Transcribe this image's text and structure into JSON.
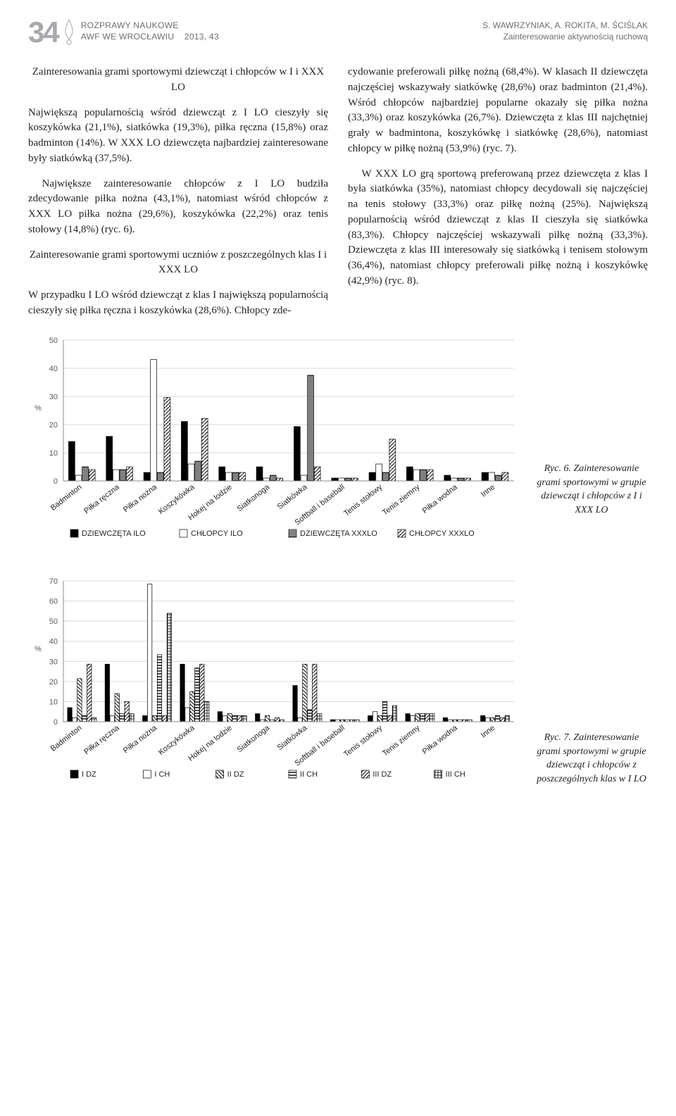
{
  "page_number": "34",
  "header_left_line1": "ROZPRAWY NAUKOWE",
  "header_left_line2_a": "AWF WE WROCŁAWIU",
  "header_left_line2_b": "2013, 43",
  "header_right_line1": "S. WAWRZYNIAK, A. ROKITA, M. ŚCIŚLAK",
  "header_right_line2": "Zainteresowanie aktywnością ruchową",
  "subhead1": "Zainteresowania grami sportowymi dziewcząt i chłopców w I i XXX LO",
  "para1": "Największą popularnością wśród dziewcząt z I LO cieszyły się koszykówka (21,1%), siatkówka (19,3%), piłka ręczna (15,8%) oraz badminton (14%). W XXX LO dziewczęta najbardziej zainteresowane były siatkówką (37,5%).",
  "para2": "Największe zainteresowanie chłopców z I LO budziła zdecydowanie piłka nożna (43,1%), natomiast wśród chłopców z XXX LO piłka nożna (29,6%), koszykówka (22,2%) oraz tenis stołowy (14,8%) (ryc. 6).",
  "subhead2": "Zainteresowanie grami sportowymi uczniów z poszczególnych klas I i XXX LO",
  "para3": "W przypadku I LO wśród dziewcząt z klas I największą popularnością cieszyły się piłka ręczna i koszykówka (28,6%). Chłopcy zde-",
  "para4": "cydowanie preferowali piłkę nożną (68,4%). W klasach II dziewczęta najczęściej wskazywały siatkówkę (28,6%) oraz badminton (21,4%). Wśród chłopców najbardziej popularne okazały się piłka nożna (33,3%) oraz koszykówka (26,7%). Dziewczęta z klas III najchętniej grały w badmintona, koszykówkę i siatkówkę (28,6%), natomiast chłopcy w piłkę nożną (53,9%) (ryc. 7).",
  "para5": "W XXX LO grą sportową preferowaną przez dziewczęta z klas I była siatkówka (35%), natomiast chłopcy decydowali się najczęściej na tenis stołowy (33,3%) oraz piłkę nożną (25%). Największą popularnością wśród dziewcząt z klas II cieszyła się siatkówka (83,3%). Chłopcy najczęściej wskazywali piłkę nożną (33,3%). Dziewczęta z klas III interesowały się siatkówką i tenisem stołowym (36,4%), natomiast chłopcy preferowali piłkę nożną i koszykówkę (42,9%) (ryc. 8).",
  "caption6": "Ryc. 6. Zainteresowanie grami sportowymi w grupie dziewcząt i chłopców z I i XXX LO",
  "caption7": "Ryc. 7. Zainteresowanie grami sportowymi w grupie dziewcząt i chłopców z poszczególnych klas w I LO",
  "chart6": {
    "type": "bar",
    "categories": [
      "Badminton",
      "Piłka ręczna",
      "Piłka nożna",
      "Koszykówka",
      "Hokej na lodzie",
      "Siatkonoga",
      "Siatkówka",
      "Softball i baseball",
      "Tenis stołowy",
      "Tenis ziemny",
      "Piłka wodna",
      "Inne"
    ],
    "series": [
      {
        "name": "DZIEWCZĘTA ILO",
        "fill": "#000000",
        "pattern": "solid",
        "values": [
          14,
          15.8,
          3,
          21.1,
          5,
          5,
          19.3,
          1,
          3,
          5,
          2,
          3
        ]
      },
      {
        "name": "CHŁOPCY ILO",
        "fill": "#ffffff",
        "pattern": "outline",
        "values": [
          2,
          4,
          43.1,
          6,
          3,
          1,
          2,
          1,
          6,
          4,
          1,
          3
        ]
      },
      {
        "name": "DZIEWCZĘTA XXXLO",
        "fill": "#000000",
        "pattern": "horiz",
        "values": [
          5,
          4,
          3,
          7,
          3,
          2,
          37.5,
          1,
          3,
          4,
          1,
          2
        ]
      },
      {
        "name": "CHŁOPCY XXXLO",
        "fill": "#000000",
        "pattern": "diag",
        "values": [
          4,
          5,
          29.6,
          22.2,
          3,
          1,
          5,
          1,
          14.8,
          4,
          1,
          3
        ]
      }
    ],
    "ylabel": "%",
    "ylim": [
      0,
      50
    ],
    "ytick_step": 10,
    "background_color": "#ffffff",
    "grid_color": "#d9d9d9",
    "axis_color": "#8c8c8c",
    "label_fontsize": 11,
    "bar_group_width": 0.72
  },
  "chart7": {
    "type": "bar",
    "categories": [
      "Badminton",
      "Piłka ręczna",
      "Piłka nożna",
      "Koszykówka",
      "Hokej na lodzie",
      "Siatkonoga",
      "Siatkówka",
      "Softball i baseball",
      "Tenis stołowy",
      "Tenis ziemny",
      "Piłka wodna",
      "Inne"
    ],
    "series": [
      {
        "name": "I DZ",
        "fill": "#000000",
        "pattern": "solid",
        "values": [
          7,
          28.6,
          3,
          28.6,
          5,
          4,
          18,
          1,
          3,
          4,
          2,
          3
        ]
      },
      {
        "name": "I CH",
        "fill": "#ffffff",
        "pattern": "outline",
        "values": [
          2,
          3,
          68.4,
          7,
          3,
          1,
          2,
          1,
          5,
          3,
          1,
          2
        ]
      },
      {
        "name": "II DZ",
        "fill": "#000000",
        "pattern": "diag-left",
        "values": [
          21.4,
          14,
          3,
          15,
          4,
          3,
          28.6,
          1,
          3,
          4,
          1,
          2
        ]
      },
      {
        "name": "II CH",
        "fill": "#000000",
        "pattern": "horiz-d",
        "values": [
          3,
          4,
          33.3,
          26.7,
          3,
          1,
          6,
          1,
          10,
          4,
          1,
          3
        ]
      },
      {
        "name": "III DZ",
        "fill": "#000000",
        "pattern": "diag",
        "values": [
          28.6,
          10,
          3,
          28.6,
          3,
          2,
          28.6,
          1,
          3,
          4,
          1,
          2
        ]
      },
      {
        "name": "III CH",
        "fill": "#000000",
        "pattern": "grid",
        "values": [
          2,
          4,
          53.9,
          10,
          3,
          1,
          4,
          1,
          8,
          4,
          1,
          3
        ]
      }
    ],
    "ylabel": "%",
    "ylim": [
      0,
      70
    ],
    "ytick_step": 10,
    "background_color": "#ffffff",
    "grid_color": "#d9d9d9",
    "axis_color": "#8c8c8c",
    "label_fontsize": 11,
    "bar_group_width": 0.78
  }
}
